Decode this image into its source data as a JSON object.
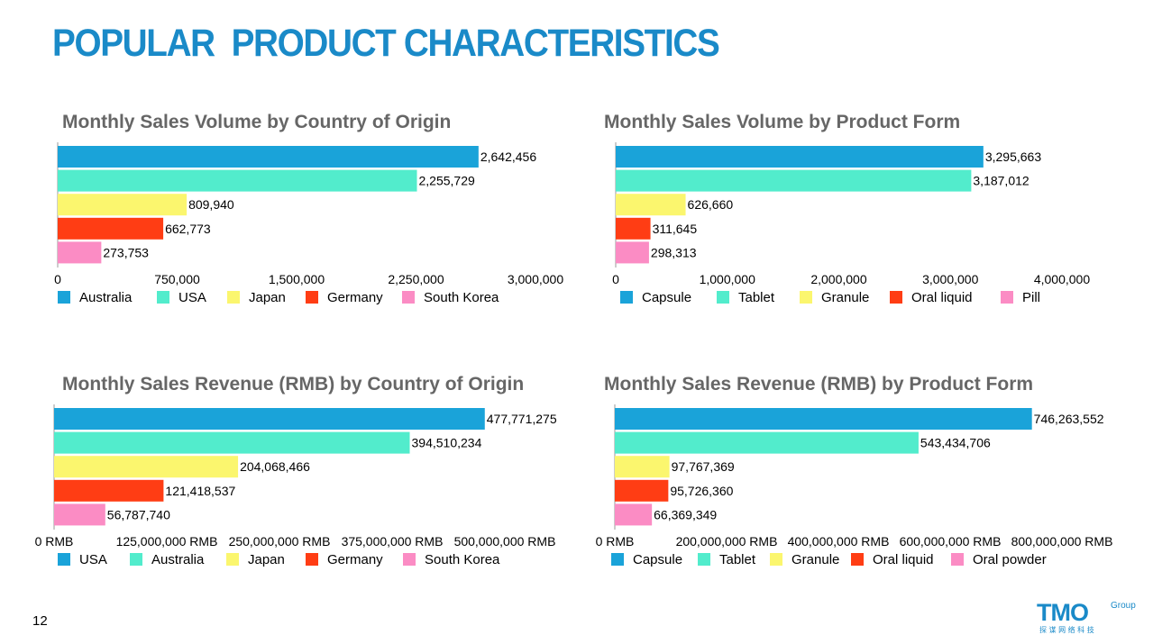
{
  "page": {
    "title": "POPULAR  PRODUCT CHARACTERISTICS",
    "page_number": "12",
    "logo": {
      "text": "TMO",
      "superscript": "Group",
      "tagline": "探 谋 网 络 科 技"
    }
  },
  "colors": {
    "title": "#1a8ac8",
    "chart_title": "#666666",
    "series": [
      "#1aa3d9",
      "#52eccc",
      "#fbf66e",
      "#ff3d14",
      "#fb8cc4"
    ]
  },
  "chart_data": [
    {
      "type": "bar",
      "orientation": "horizontal",
      "title": "Monthly Sales Volume by Country of Origin",
      "categories": [
        "Australia",
        "USA",
        "Japan",
        "Germany",
        "South Korea"
      ],
      "values": [
        2642456,
        2255729,
        809940,
        662773,
        273753
      ],
      "data_labels": [
        "2,642,456",
        "2,255,729",
        "809,940",
        "662,773",
        "273,753"
      ],
      "xlim": [
        0,
        3000000
      ],
      "ticks": [
        0,
        750000,
        1500000,
        2250000,
        3000000
      ],
      "tick_labels": [
        "0",
        "750,000",
        "1,500,000",
        "2,250,000",
        "3,000,000"
      ],
      "legend_position": "bottom"
    },
    {
      "type": "bar",
      "orientation": "horizontal",
      "title": "Monthly Sales Volume by Product Form",
      "categories": [
        "Capsule",
        "Tablet",
        "Granule",
        "Oral liquid",
        "Pill"
      ],
      "values": [
        3295663,
        3187012,
        626660,
        311645,
        298313
      ],
      "data_labels": [
        "3,295,663",
        "3,187,012",
        "626,660",
        "311,645",
        "298,313"
      ],
      "xlim": [
        0,
        4000000
      ],
      "ticks": [
        0,
        1000000,
        2000000,
        3000000,
        4000000
      ],
      "tick_labels": [
        "0",
        "1,000,000",
        "2,000,000",
        "3,000,000",
        "4,000,000"
      ],
      "legend_position": "bottom"
    },
    {
      "type": "bar",
      "orientation": "horizontal",
      "title": "Monthly Sales Revenue (RMB) by Country of Origin",
      "categories": [
        "USA",
        "Australia",
        "Japan",
        "Germany",
        "South Korea"
      ],
      "values": [
        477771275,
        394510234,
        204068466,
        121418537,
        56787740
      ],
      "data_labels": [
        "477,771,275",
        "394,510,234",
        "204,068,466",
        "121,418,537",
        "56,787,740"
      ],
      "xlim": [
        0,
        500000000
      ],
      "ticks": [
        0,
        125000000,
        250000000,
        375000000,
        500000000
      ],
      "tick_labels": [
        "0 RMB",
        "125,000,000 RMB",
        "250,000,000 RMB",
        "375,000,000 RMB",
        "500,000,000 RMB"
      ],
      "legend_position": "bottom"
    },
    {
      "type": "bar",
      "orientation": "horizontal",
      "title": "Monthly Sales Revenue (RMB) by Product Form",
      "categories": [
        "Capsule",
        "Tablet",
        "Granule",
        "Oral liquid",
        "Oral powder"
      ],
      "values": [
        746263552,
        543434706,
        97767369,
        95726360,
        66369349
      ],
      "data_labels": [
        "746,263,552",
        "543,434,706",
        "97,767,369",
        "95,726,360",
        "66,369,349"
      ],
      "xlim": [
        0,
        800000000
      ],
      "ticks": [
        0,
        200000000,
        400000000,
        600000000,
        800000000
      ],
      "tick_labels": [
        "0 RMB",
        "200,000,000 RMB",
        "400,000,000 RMB",
        "600,000,000 RMB",
        "800,000,000 RMB"
      ],
      "legend_position": "bottom"
    }
  ]
}
